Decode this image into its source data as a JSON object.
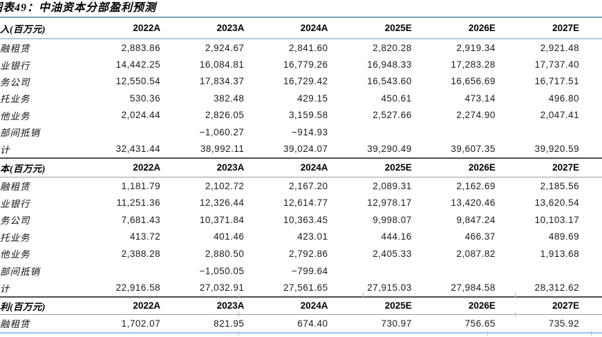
{
  "title": "图表49：中油资本分部盈利预测",
  "columns": [
    "2022A",
    "2023A",
    "2024A",
    "2025E",
    "2026E",
    "2027E"
  ],
  "sections": [
    {
      "header": "入(百万元)",
      "rows": [
        {
          "label": "融租赁",
          "values": [
            "2,883.86",
            "2,924.67",
            "2,841.60",
            "2,820.28",
            "2,919.34",
            "2,921.48"
          ]
        },
        {
          "label": "业银行",
          "values": [
            "14,442.25",
            "16,084.81",
            "16,779.26",
            "16,948.33",
            "17,283.28",
            "17,737.40"
          ]
        },
        {
          "label": "务公司",
          "values": [
            "12,550.54",
            "17,834.37",
            "16,729.42",
            "16,543.60",
            "16,656.69",
            "16,717.51"
          ]
        },
        {
          "label": "托业务",
          "values": [
            "530.36",
            "382.48",
            "429.15",
            "450.61",
            "473.14",
            "496.80"
          ]
        },
        {
          "label": "他业务",
          "values": [
            "2,024.44",
            "2,826.05",
            "3,159.58",
            "2,527.66",
            "2,274.90",
            "2,047.41"
          ]
        },
        {
          "label": "部间抵销",
          "values": [
            "",
            "−1,060.27",
            "−914.93",
            "",
            "",
            ""
          ]
        },
        {
          "label": "计",
          "values": [
            "32,431.44",
            "38,992.11",
            "39,024.07",
            "39,290.49",
            "39,607.35",
            "39,920.59"
          ]
        }
      ]
    },
    {
      "header": "本(百万元)",
      "rows": [
        {
          "label": "融租赁",
          "values": [
            "1,181.79",
            "2,102.72",
            "2,167.20",
            "2,089.31",
            "2,162.69",
            "2,185.56"
          ]
        },
        {
          "label": "业银行",
          "values": [
            "11,251.36",
            "12,326.44",
            "12,614.77",
            "12,978.17",
            "13,420.46",
            "13,620.54"
          ]
        },
        {
          "label": "务公司",
          "values": [
            "7,681.43",
            "10,371.84",
            "10,363.45",
            "9,998.07",
            "9,847.24",
            "10,103.17"
          ]
        },
        {
          "label": "托业务",
          "values": [
            "413.72",
            "401.46",
            "423.01",
            "444.16",
            "466.37",
            "489.69"
          ]
        },
        {
          "label": "他业务",
          "values": [
            "2,388.28",
            "2,880.50",
            "2,792.86",
            "2,405.33",
            "2,087.82",
            "1,913.68"
          ]
        },
        {
          "label": "部间抵销",
          "values": [
            "",
            "−1,050.05",
            "−799.64",
            "",
            "",
            ""
          ]
        },
        {
          "label": "计",
          "values": [
            "22,916.58",
            "27,032.91",
            "27,561.65",
            "27,915.03",
            "27,984.58",
            "28,312.62"
          ]
        }
      ]
    },
    {
      "header": "利(百万元)",
      "rows": [
        {
          "label": "融租赁",
          "values": [
            "1,702.07",
            "821.95",
            "674.40",
            "730.97",
            "756.65",
            "735.92"
          ]
        }
      ]
    }
  ],
  "colors": {
    "title_rule": "#7ca0bc",
    "header1_rule": "#aecbdf",
    "section_rule": "#4d4d4d",
    "header_underline": "#9a9a9a",
    "bottom_rule": "#9dc3e6"
  }
}
